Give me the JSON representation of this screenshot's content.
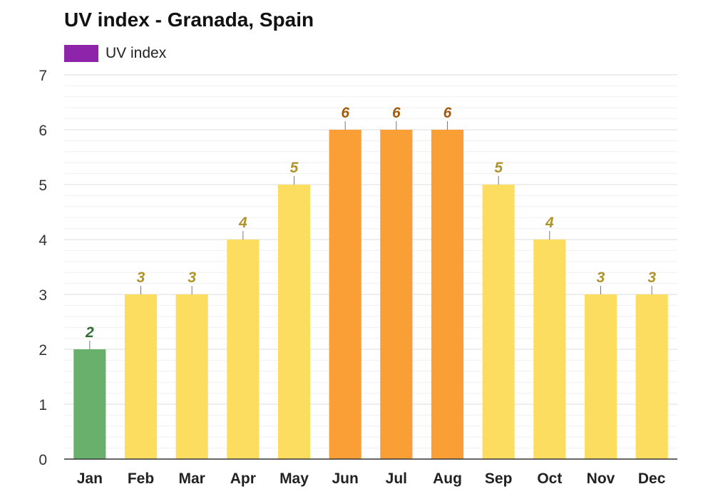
{
  "colors": {
    "legend_swatch": "#8e24aa",
    "uv_low": "#6ab06d",
    "uv_moderate": "#fcdd5f",
    "uv_high": "#fa9f36",
    "label_low": "#2e6e30",
    "label_moderate": "#b0942a",
    "label_high": "#a45a0d",
    "grid_major": "#dddddd",
    "grid_minor": "#f0f0f0",
    "axis": "#333333"
  },
  "chart_data": {
    "type": "bar",
    "title": "UV index - Granada, Spain",
    "legend": [
      {
        "label": "UV index",
        "color": "#8e24aa"
      }
    ],
    "legend_position": "top-left",
    "categories": [
      "Jan",
      "Feb",
      "Mar",
      "Apr",
      "May",
      "Jun",
      "Jul",
      "Aug",
      "Sep",
      "Oct",
      "Nov",
      "Dec"
    ],
    "values": [
      2,
      3,
      3,
      4,
      5,
      6,
      6,
      6,
      5,
      4,
      3,
      3
    ],
    "data_labels": [
      "2",
      "3",
      "3",
      "4",
      "5",
      "6",
      "6",
      "6",
      "5",
      "4",
      "3",
      "3"
    ],
    "ylim": [
      0,
      7
    ],
    "yticks": [
      "0",
      "1",
      "2",
      "3",
      "4",
      "5",
      "6",
      "7"
    ],
    "grid": true,
    "xlabel": "",
    "ylabel": ""
  }
}
